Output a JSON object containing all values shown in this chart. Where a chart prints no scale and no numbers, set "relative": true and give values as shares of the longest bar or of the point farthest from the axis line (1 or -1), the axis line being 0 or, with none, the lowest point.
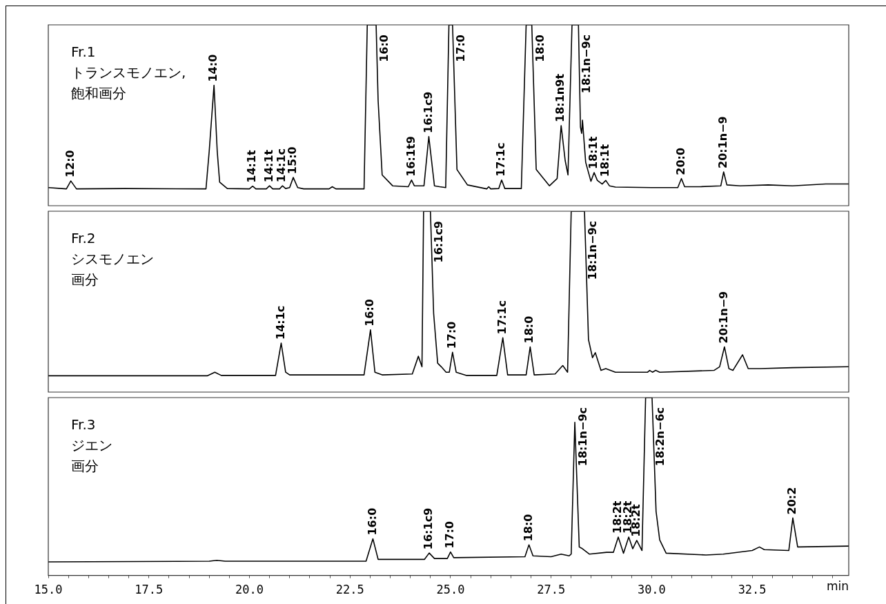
{
  "chart_data": [
    {
      "type": "line",
      "title": "Fr.1",
      "subtitle": "トランスモノエン,飽和画分",
      "relative": true,
      "marker": "none",
      "line_style": "solid",
      "legend": false,
      "grid": false,
      "tick_labels": false,
      "xlim": [
        15,
        34.9
      ],
      "series": [
        {
          "color": "#000000",
          "x": [
            15.0,
            15.45,
            15.56,
            15.7,
            16.9,
            18.92,
            19.0,
            19.12,
            19.2,
            19.26,
            19.45,
            20.0,
            20.08,
            20.16,
            20.42,
            20.5,
            20.58,
            20.75,
            20.82,
            20.9,
            21.0,
            21.09,
            21.2,
            21.35,
            21.98,
            22.06,
            22.15,
            22.85,
            22.93,
            23.15,
            23.2,
            23.3,
            23.56,
            23.95,
            24.03,
            24.1,
            24.34,
            24.46,
            24.6,
            24.73,
            24.88,
            24.96,
            25.05,
            25.16,
            25.42,
            25.9,
            25.95,
            26.0,
            26.2,
            26.27,
            26.35,
            26.76,
            26.88,
            27.02,
            27.13,
            27.46,
            27.65,
            27.75,
            27.85,
            27.92,
            28.02,
            28.18,
            28.23,
            28.26,
            28.28,
            28.36,
            28.49,
            28.57,
            28.65,
            28.77,
            28.86,
            28.95,
            29.1,
            30.0,
            30.65,
            30.74,
            30.82,
            31.2,
            31.72,
            31.79,
            31.87,
            32.2,
            32.9,
            33.5,
            34.33,
            34.9
          ],
          "values": [
            0.1,
            0.093,
            0.137,
            0.093,
            0.095,
            0.093,
            0.3,
            0.666,
            0.3,
            0.13,
            0.095,
            0.093,
            0.108,
            0.093,
            0.093,
            0.11,
            0.093,
            0.093,
            0.11,
            0.095,
            0.1,
            0.156,
            0.1,
            0.093,
            0.093,
            0.105,
            0.093,
            0.093,
            1,
            1,
            0.58,
            0.17,
            0.11,
            0.105,
            0.142,
            0.11,
            0.11,
            0.382,
            0.11,
            0.105,
            0.1,
            1,
            1,
            0.2,
            0.115,
            0.093,
            0.105,
            0.093,
            0.095,
            0.142,
            0.095,
            0.095,
            1,
            1,
            0.2,
            0.11,
            0.15,
            0.443,
            0.25,
            0.17,
            1,
            1,
            0.435,
            0.4,
            0.473,
            0.24,
            0.135,
            0.183,
            0.14,
            0.12,
            0.14,
            0.11,
            0.103,
            0.1,
            0.1,
            0.15,
            0.105,
            0.105,
            0.11,
            0.187,
            0.115,
            0.11,
            0.115,
            0.11,
            0.12,
            0.12
          ]
        }
      ],
      "annotations": [
        {
          "text": "12:0",
          "x": 15.56,
          "y": 0.137
        },
        {
          "text": "14:0",
          "x": 19.12,
          "y": 0.666
        },
        {
          "text": "14:1t",
          "x": 20.08,
          "y": 0.108
        },
        {
          "text": "14:1t",
          "x": 20.5,
          "y": 0.11
        },
        {
          "text": "14:1c",
          "x": 20.82,
          "y": 0.11
        },
        {
          "text": "15:0",
          "x": 21.09,
          "y": 0.156
        },
        {
          "text": "16:0",
          "x": 23.15,
          "y": 1
        },
        {
          "text": "16:1t9",
          "x": 24.03,
          "y": 0.142
        },
        {
          "text": "16:1c9",
          "x": 24.46,
          "y": 0.382
        },
        {
          "text": "17:0",
          "x": 25.05,
          "y": 1
        },
        {
          "text": "17:1c",
          "x": 26.27,
          "y": 0.142
        },
        {
          "text": "18:0",
          "x": 27.02,
          "y": 1
        },
        {
          "text": "18:1n9t",
          "x": 27.75,
          "y": 0.443
        },
        {
          "text": "18:1n−9c",
          "x": 28.18,
          "y": 1
        },
        {
          "text": "18:1t",
          "x": 28.57,
          "y": 0.183
        },
        {
          "text": "18:1t",
          "x": 28.86,
          "y": 0.14
        },
        {
          "text": "20:0",
          "x": 30.74,
          "y": 0.15
        },
        {
          "text": "20:1n−9",
          "x": 31.79,
          "y": 0.187
        }
      ]
    },
    {
      "type": "line",
      "title": "Fr.2",
      "subtitle": "シスモノエン画分",
      "relative": true,
      "marker": "none",
      "line_style": "solid",
      "legend": false,
      "grid": false,
      "tick_labels": false,
      "xlim": [
        15,
        34.9
      ],
      "series": [
        {
          "color": "#000000",
          "x": [
            15.0,
            18.95,
            19.14,
            19.3,
            20.65,
            20.79,
            20.9,
            21.0,
            22.85,
            23.01,
            23.12,
            23.3,
            24.05,
            24.2,
            24.29,
            24.33,
            24.5,
            24.58,
            24.68,
            24.77,
            24.89,
            24.97,
            25.05,
            25.14,
            25.4,
            26.15,
            26.3,
            26.42,
            26.88,
            26.98,
            27.08,
            27.6,
            27.79,
            27.91,
            28.0,
            28.33,
            28.43,
            28.53,
            28.6,
            28.74,
            28.86,
            29.1,
            29.9,
            29.95,
            30.02,
            30.1,
            30.2,
            31.55,
            31.69,
            31.81,
            31.92,
            32.02,
            32.26,
            32.4,
            32.7,
            33.5,
            34.9
          ],
          "values": [
            0.09,
            0.09,
            0.11,
            0.092,
            0.092,
            0.271,
            0.11,
            0.095,
            0.095,
            0.344,
            0.11,
            0.095,
            0.1,
            0.198,
            0.14,
            1,
            1,
            0.435,
            0.16,
            0.14,
            0.11,
            0.11,
            0.22,
            0.11,
            0.092,
            0.092,
            0.3,
            0.095,
            0.095,
            0.25,
            0.095,
            0.1,
            0.147,
            0.11,
            1,
            1,
            0.29,
            0.19,
            0.218,
            0.12,
            0.13,
            0.11,
            0.11,
            0.12,
            0.11,
            0.12,
            0.11,
            0.12,
            0.14,
            0.25,
            0.13,
            0.12,
            0.206,
            0.13,
            0.13,
            0.135,
            0.14
          ]
        }
      ],
      "annotations": [
        {
          "text": "14:1c",
          "x": 20.79,
          "y": 0.271
        },
        {
          "text": "16:0",
          "x": 23.01,
          "y": 0.344
        },
        {
          "text": "16:1c9",
          "x": 24.5,
          "y": 1
        },
        {
          "text": "17:0",
          "x": 25.05,
          "y": 0.22
        },
        {
          "text": "17:1c",
          "x": 26.3,
          "y": 0.3
        },
        {
          "text": "18:0",
          "x": 26.98,
          "y": 0.25
        },
        {
          "text": "18:1n−9c",
          "x": 28.33,
          "y": 1
        },
        {
          "text": "20:1n−9",
          "x": 31.81,
          "y": 0.25
        }
      ]
    },
    {
      "type": "line",
      "title": "Fr.3",
      "subtitle": "ジエン画分",
      "xlabel": "min",
      "relative": true,
      "marker": "none",
      "line_style": "solid",
      "legend": false,
      "grid": false,
      "tick_labels": "x",
      "xlim": [
        15,
        34.9
      ],
      "xticks": [
        {
          "value": 15,
          "label": "15.0"
        },
        {
          "value": 15.5,
          "label": null
        },
        {
          "value": 16,
          "label": null
        },
        {
          "value": 16.5,
          "label": null
        },
        {
          "value": 17,
          "label": null
        },
        {
          "value": 17.5,
          "label": "17.5"
        },
        {
          "value": 18,
          "label": null
        },
        {
          "value": 18.5,
          "label": null
        },
        {
          "value": 19,
          "label": null
        },
        {
          "value": 19.5,
          "label": null
        },
        {
          "value": 20,
          "label": "20.0"
        },
        {
          "value": 20.5,
          "label": null
        },
        {
          "value": 21,
          "label": null
        },
        {
          "value": 21.5,
          "label": null
        },
        {
          "value": 22,
          "label": null
        },
        {
          "value": 22.5,
          "label": "22.5"
        },
        {
          "value": 23,
          "label": null
        },
        {
          "value": 23.5,
          "label": null
        },
        {
          "value": 24,
          "label": null
        },
        {
          "value": 24.5,
          "label": null
        },
        {
          "value": 25,
          "label": "25.0"
        },
        {
          "value": 25.5,
          "label": null
        },
        {
          "value": 26,
          "label": null
        },
        {
          "value": 26.5,
          "label": null
        },
        {
          "value": 27,
          "label": null
        },
        {
          "value": 27.5,
          "label": "27.5"
        },
        {
          "value": 28,
          "label": null
        },
        {
          "value": 28.5,
          "label": null
        },
        {
          "value": 29,
          "label": null
        },
        {
          "value": 29.5,
          "label": null
        },
        {
          "value": 30,
          "label": "30.0"
        },
        {
          "value": 30.5,
          "label": null
        },
        {
          "value": 31,
          "label": null
        },
        {
          "value": 31.5,
          "label": null
        },
        {
          "value": 32,
          "label": null
        },
        {
          "value": 32.5,
          "label": "32.5"
        },
        {
          "value": 33,
          "label": null
        },
        {
          "value": 33.5,
          "label": null
        },
        {
          "value": 34,
          "label": null
        },
        {
          "value": 34.5,
          "label": null
        }
      ],
      "series": [
        {
          "color": "#000000",
          "x": [
            15.0,
            19.0,
            19.19,
            19.4,
            22.9,
            23.07,
            23.2,
            24.35,
            24.47,
            24.6,
            24.92,
            25.0,
            25.08,
            26.85,
            26.95,
            27.05,
            27.5,
            27.75,
            27.95,
            28.0,
            28.09,
            28.2,
            28.26,
            28.45,
            28.88,
            29.05,
            29.17,
            29.3,
            29.43,
            29.53,
            29.63,
            29.76,
            29.85,
            30.01,
            30.11,
            30.2,
            30.36,
            31.35,
            31.78,
            32.5,
            32.68,
            32.8,
            33.41,
            33.51,
            33.63,
            34.9
          ],
          "values": [
            0.076,
            0.08,
            0.085,
            0.08,
            0.08,
            0.206,
            0.09,
            0.09,
            0.126,
            0.095,
            0.095,
            0.132,
            0.1,
            0.105,
            0.172,
            0.11,
            0.105,
            0.12,
            0.11,
            0.12,
            0.861,
            0.16,
            0.153,
            0.12,
            0.13,
            0.13,
            0.216,
            0.125,
            0.216,
            0.15,
            0.197,
            0.14,
            1,
            1,
            0.36,
            0.2,
            0.125,
            0.115,
            0.12,
            0.14,
            0.16,
            0.145,
            0.14,
            0.323,
            0.16,
            0.165
          ]
        }
      ],
      "annotations": [
        {
          "text": "16:0",
          "x": 23.07,
          "y": 0.206
        },
        {
          "text": "16:1c9",
          "x": 24.47,
          "y": 0.126
        },
        {
          "text": "17:0",
          "x": 25.0,
          "y": 0.132
        },
        {
          "text": "18:0",
          "x": 26.95,
          "y": 0.172
        },
        {
          "text": "18:1n−9c",
          "x": 28.09,
          "y": 0.861
        },
        {
          "text": "18:2t",
          "x": 29.17,
          "y": 0.216
        },
        {
          "text": "18:2t",
          "x": 29.43,
          "y": 0.216
        },
        {
          "text": "18:2t",
          "x": 29.63,
          "y": 0.197
        },
        {
          "text": "18:2n−6c",
          "x": 30.01,
          "y": 1
        },
        {
          "text": "20:2",
          "x": 33.51,
          "y": 0.323
        }
      ]
    }
  ]
}
